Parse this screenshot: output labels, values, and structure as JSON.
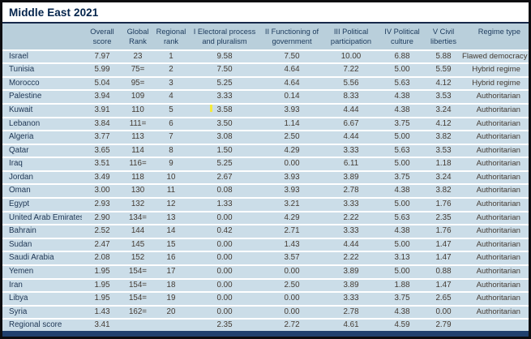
{
  "title": "Middle East 2021",
  "colors": {
    "header_bg": "#b9cfdb",
    "row_bg": "#cbdde8",
    "bottom_bar_navy": "#20406e",
    "title_navy": "#03234b",
    "value_text": "#443b33",
    "cursor_mark_yellow": "#f4ea3d",
    "outer_border": "#0d0d10"
  },
  "table": {
    "columns": [
      {
        "key": "country",
        "label": ""
      },
      {
        "key": "overall",
        "label": "Overall\nscore"
      },
      {
        "key": "global_rank",
        "label": "Global\nRank"
      },
      {
        "key": "regional_rank",
        "label": "Regional\nrank"
      },
      {
        "key": "electoral",
        "label": "I Electoral process\nand pluralism"
      },
      {
        "key": "functioning",
        "label": "II Functioning of\ngovernment"
      },
      {
        "key": "participation",
        "label": "III Political\nparticipation"
      },
      {
        "key": "culture",
        "label": "IV Political\nculture"
      },
      {
        "key": "liberties",
        "label": "V Civil\nliberties"
      },
      {
        "key": "regime",
        "label": "Regime type"
      }
    ],
    "rows": [
      {
        "country": "Israel",
        "overall": "7.97",
        "global_rank": "23",
        "regional_rank": "1",
        "electoral": "9.58",
        "functioning": "7.50",
        "participation": "10.00",
        "culture": "6.88",
        "liberties": "5.88",
        "regime": "Flawed democracy"
      },
      {
        "country": "Tunisia",
        "overall": "5.99",
        "global_rank": "75=",
        "regional_rank": "2",
        "electoral": "7.50",
        "functioning": "4.64",
        "participation": "7.22",
        "culture": "5.00",
        "liberties": "5.59",
        "regime": "Hybrid regime"
      },
      {
        "country": "Morocco",
        "overall": "5.04",
        "global_rank": "95=",
        "regional_rank": "3",
        "electoral": "5.25",
        "functioning": "4.64",
        "participation": "5.56",
        "culture": "5.63",
        "liberties": "4.12",
        "regime": "Hybrid regime"
      },
      {
        "country": "Palestine",
        "overall": "3.94",
        "global_rank": "109",
        "regional_rank": "4",
        "electoral": "3.33",
        "functioning": "0.14",
        "participation": "8.33",
        "culture": "4.38",
        "liberties": "3.53",
        "regime": "Authoritarian"
      },
      {
        "country": "Kuwait",
        "overall": "3.91",
        "global_rank": "110",
        "regional_rank": "5",
        "electoral": "3.58",
        "functioning": "3.93",
        "participation": "4.44",
        "culture": "4.38",
        "liberties": "3.24",
        "regime": "Authoritarian"
      },
      {
        "country": "Lebanon",
        "overall": "3.84",
        "global_rank": "111=",
        "regional_rank": "6",
        "electoral": "3.50",
        "functioning": "1.14",
        "participation": "6.67",
        "culture": "3.75",
        "liberties": "4.12",
        "regime": "Authoritarian"
      },
      {
        "country": "Algeria",
        "overall": "3.77",
        "global_rank": "113",
        "regional_rank": "7",
        "electoral": "3.08",
        "functioning": "2.50",
        "participation": "4.44",
        "culture": "5.00",
        "liberties": "3.82",
        "regime": "Authoritarian"
      },
      {
        "country": "Qatar",
        "overall": "3.65",
        "global_rank": "114",
        "regional_rank": "8",
        "electoral": "1.50",
        "functioning": "4.29",
        "participation": "3.33",
        "culture": "5.63",
        "liberties": "3.53",
        "regime": "Authoritarian"
      },
      {
        "country": "Iraq",
        "overall": "3.51",
        "global_rank": "116=",
        "regional_rank": "9",
        "electoral": "5.25",
        "functioning": "0.00",
        "participation": "6.11",
        "culture": "5.00",
        "liberties": "1.18",
        "regime": "Authoritarian"
      },
      {
        "country": "Jordan",
        "overall": "3.49",
        "global_rank": "118",
        "regional_rank": "10",
        "electoral": "2.67",
        "functioning": "3.93",
        "participation": "3.89",
        "culture": "3.75",
        "liberties": "3.24",
        "regime": "Authoritarian"
      },
      {
        "country": "Oman",
        "overall": "3.00",
        "global_rank": "130",
        "regional_rank": "11",
        "electoral": "0.08",
        "functioning": "3.93",
        "participation": "2.78",
        "culture": "4.38",
        "liberties": "3.82",
        "regime": "Authoritarian"
      },
      {
        "country": "Egypt",
        "overall": "2.93",
        "global_rank": "132",
        "regional_rank": "12",
        "electoral": "1.33",
        "functioning": "3.21",
        "participation": "3.33",
        "culture": "5.00",
        "liberties": "1.76",
        "regime": "Authoritarian"
      },
      {
        "country": "United Arab Emirates",
        "overall": "2.90",
        "global_rank": "134=",
        "regional_rank": "13",
        "electoral": "0.00",
        "functioning": "4.29",
        "participation": "2.22",
        "culture": "5.63",
        "liberties": "2.35",
        "regime": "Authoritarian"
      },
      {
        "country": "Bahrain",
        "overall": "2.52",
        "global_rank": "144",
        "regional_rank": "14",
        "electoral": "0.42",
        "functioning": "2.71",
        "participation": "3.33",
        "culture": "4.38",
        "liberties": "1.76",
        "regime": "Authoritarian"
      },
      {
        "country": "Sudan",
        "overall": "2.47",
        "global_rank": "145",
        "regional_rank": "15",
        "electoral": "0.00",
        "functioning": "1.43",
        "participation": "4.44",
        "culture": "5.00",
        "liberties": "1.47",
        "regime": "Authoritarian"
      },
      {
        "country": "Saudi Arabia",
        "overall": "2.08",
        "global_rank": "152",
        "regional_rank": "16",
        "electoral": "0.00",
        "functioning": "3.57",
        "participation": "2.22",
        "culture": "3.13",
        "liberties": "1.47",
        "regime": "Authoritarian"
      },
      {
        "country": "Yemen",
        "overall": "1.95",
        "global_rank": "154=",
        "regional_rank": "17",
        "electoral": "0.00",
        "functioning": "0.00",
        "participation": "3.89",
        "culture": "5.00",
        "liberties": "0.88",
        "regime": "Authoritarian"
      },
      {
        "country": "Iran",
        "overall": "1.95",
        "global_rank": "154=",
        "regional_rank": "18",
        "electoral": "0.00",
        "functioning": "2.50",
        "participation": "3.89",
        "culture": "1.88",
        "liberties": "1.47",
        "regime": "Authoritarian"
      },
      {
        "country": "Libya",
        "overall": "1.95",
        "global_rank": "154=",
        "regional_rank": "19",
        "electoral": "0.00",
        "functioning": "0.00",
        "participation": "3.33",
        "culture": "3.75",
        "liberties": "2.65",
        "regime": "Authoritarian"
      },
      {
        "country": "Syria",
        "overall": "1.43",
        "global_rank": "162=",
        "regional_rank": "20",
        "electoral": "0.00",
        "functioning": "0.00",
        "participation": "2.78",
        "culture": "4.38",
        "liberties": "0.00",
        "regime": "Authoritarian"
      },
      {
        "country": "Regional score",
        "overall": "3.41",
        "global_rank": "",
        "regional_rank": "",
        "electoral": "2.35",
        "functioning": "2.72",
        "participation": "4.61",
        "culture": "4.59",
        "liberties": "2.79",
        "regime": "",
        "footer": true
      }
    ]
  }
}
